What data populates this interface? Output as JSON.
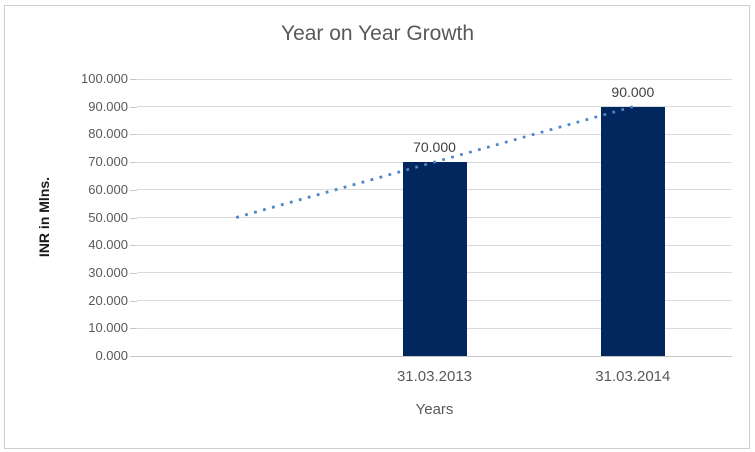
{
  "chart_data": {
    "type": "bar",
    "title": "Year on Year Growth",
    "xlabel": "Years",
    "ylabel": "INR in Mlns.",
    "categories": [
      "31.03.2013",
      "31.03.2014"
    ],
    "values": [
      70,
      90
    ],
    "value_labels": [
      "70.000",
      "90.000"
    ],
    "ylim": [
      0,
      100
    ],
    "x_slots": 3,
    "bar_slots": [
      1,
      2
    ],
    "yticks": [
      {
        "value": 0,
        "label": "0.000"
      },
      {
        "value": 10,
        "label": "10.000"
      },
      {
        "value": 20,
        "label": "20.000"
      },
      {
        "value": 30,
        "label": "30.000"
      },
      {
        "value": 40,
        "label": "40.000"
      },
      {
        "value": 50,
        "label": "50.000"
      },
      {
        "value": 60,
        "label": "60.000"
      },
      {
        "value": 70,
        "label": "70.000"
      },
      {
        "value": 80,
        "label": "80.000"
      },
      {
        "value": 90,
        "label": "90.000"
      },
      {
        "value": 100,
        "label": "100.000"
      }
    ],
    "trendline": {
      "type": "linear",
      "style": "dotted",
      "start_slot": 0,
      "start_value": 50,
      "end_slot": 2,
      "end_value": 90
    },
    "legend": "none",
    "grid": "horizontal",
    "colors": {
      "bar": "#02265e",
      "trendline": "#4e86c6",
      "gridline": "#dadada",
      "axis_line": "#c6c6c6",
      "title_text": "#595959",
      "tick_text": "#595959",
      "data_label_text": "#404040",
      "axis_title_text": "#595959",
      "ylabel_text": "#1a1a1a"
    }
  }
}
